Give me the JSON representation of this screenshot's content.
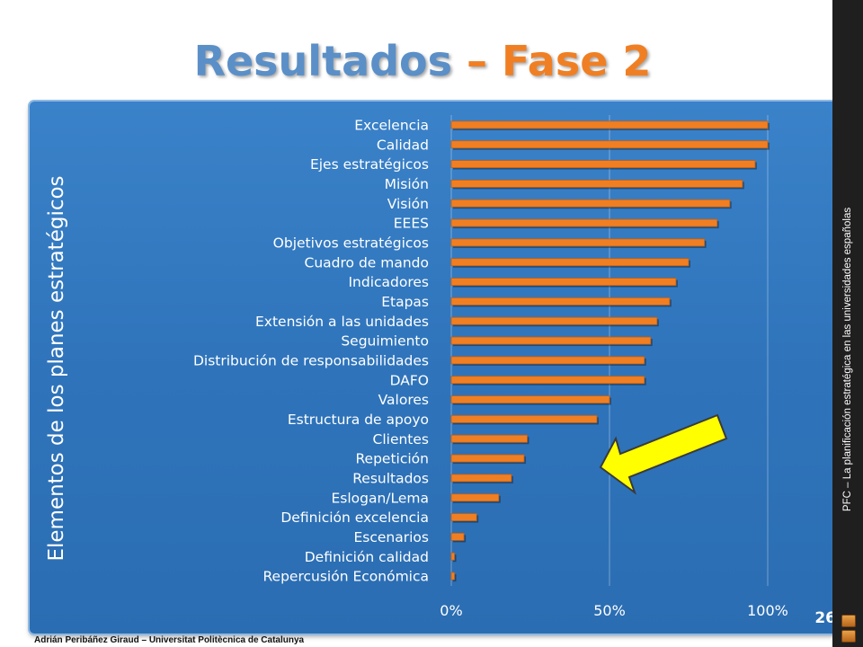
{
  "title": {
    "part1": "Resultados",
    "part2": " – Fase 2"
  },
  "sidebar": {
    "text": "PFC – La planificación estratégica en las universidades españolas"
  },
  "footer": {
    "text": "Adrián Peribáñez Giraud – Universitat Politècnica de Catalunya"
  },
  "page_number": "26",
  "colors": {
    "panel": "#2f74bb",
    "bar": "#f07f24",
    "arrow": "#ffff00",
    "title_blue": "#5b8fc7",
    "title_orange": "#f07f24"
  },
  "chart_data": {
    "type": "bar",
    "orientation": "horizontal",
    "ylabel": "Elementos de los planes estratégicos",
    "xlabel": "",
    "xlim": [
      0,
      100
    ],
    "xtick_labels": [
      "0%",
      "50%",
      "100%"
    ],
    "xticks": [
      0,
      50,
      100
    ],
    "grid": true,
    "categories": [
      "Excelencia",
      "Calidad",
      "Ejes estratégicos",
      "Misión",
      "Visión",
      "EEES",
      "Objetivos estratégicos",
      "Cuadro de mando",
      "Indicadores",
      "Etapas",
      "Extensión a las unidades",
      "Seguimiento",
      "Distribución de responsabilidades",
      "DAFO",
      "Valores",
      "Estructura de apoyo",
      "Clientes",
      "Repetición",
      "Resultados",
      "Eslogan/Lema",
      "Definición excelencia",
      "Escenarios",
      "Definición calidad",
      "Repercusión Económica"
    ],
    "values": [
      100,
      100,
      96,
      92,
      88,
      84,
      80,
      75,
      71,
      69,
      65,
      63,
      61,
      61,
      50,
      46,
      24,
      23,
      19,
      15,
      8,
      4,
      1,
      1
    ]
  },
  "annotation": {
    "icon": "arrow-icon",
    "points_to": "Clientes"
  }
}
